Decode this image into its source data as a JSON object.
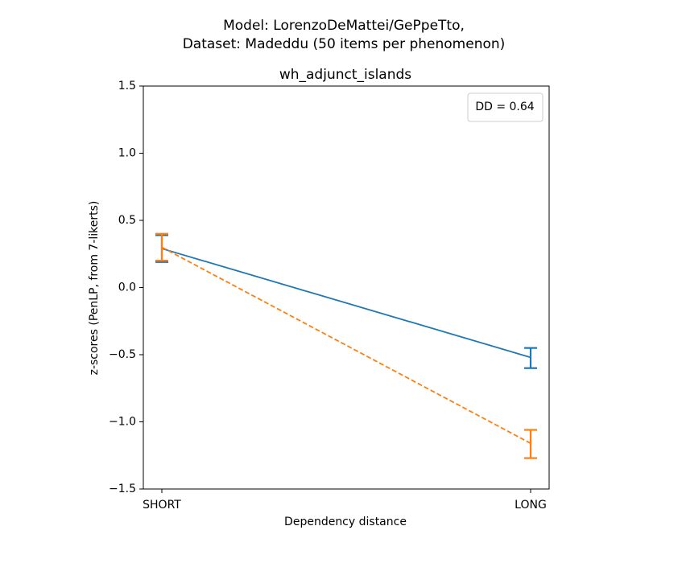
{
  "figure": {
    "title_line1": "Model: LorenzoDeMattei/GePpeTto,",
    "title_line2": "Dataset: Madeddu (50 items per phenomenon)"
  },
  "chart_data": {
    "type": "line",
    "title": "wh_adjunct_islands",
    "xlabel": "Dependency distance",
    "ylabel": "z-scores (PenLP, from 7-likerts)",
    "categories": [
      "SHORT",
      "LONG"
    ],
    "ylim": [
      -1.5,
      1.5
    ],
    "yticks": [
      -1.5,
      -1.0,
      -0.5,
      0.0,
      0.5,
      1.0,
      1.5
    ],
    "ytick_labels": [
      "−1.5",
      "−1.0",
      "−0.5",
      "0.0",
      "0.5",
      "1.0",
      "1.5"
    ],
    "grid": false,
    "series": [
      {
        "color": "#1f77b4",
        "linestyle": "solid",
        "values": [
          0.29,
          -0.52
        ],
        "error_low": [
          0.19,
          -0.6
        ],
        "error_high": [
          0.39,
          -0.45
        ]
      },
      {
        "color": "#ff7f0e",
        "linestyle": "dashed",
        "values": [
          0.3,
          -1.16
        ],
        "error_low": [
          0.2,
          -1.27
        ],
        "error_high": [
          0.4,
          -1.06
        ]
      }
    ],
    "annotation": {
      "text": "DD = 0.64",
      "placement": "top-right"
    }
  }
}
